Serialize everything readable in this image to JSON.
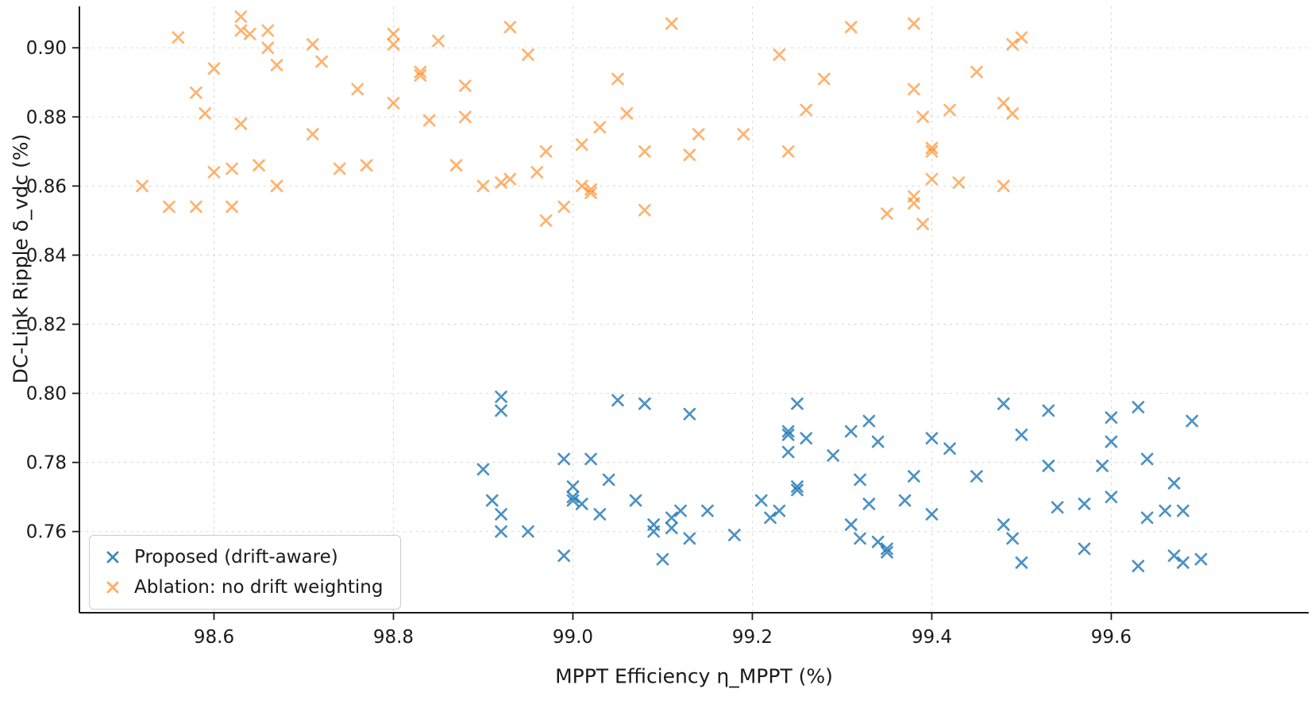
{
  "chart_data": {
    "type": "scatter",
    "title": "",
    "xlabel": "MPPT Efficiency η_MPPT (%)",
    "ylabel": "DC-Link Ripple δ_vdc (%)",
    "xlim": [
      98.45,
      99.82
    ],
    "ylim": [
      0.7365,
      0.912
    ],
    "xticks": [
      98.6,
      98.8,
      99.0,
      99.2,
      99.4,
      99.6
    ],
    "xtick_labels": [
      "98.6",
      "98.8",
      "99.0",
      "99.2",
      "99.4",
      "99.6"
    ],
    "yticks": [
      0.76,
      0.78,
      0.8,
      0.82,
      0.84,
      0.86,
      0.88,
      0.9
    ],
    "ytick_labels": [
      "0.76",
      "0.78",
      "0.80",
      "0.82",
      "0.84",
      "0.86",
      "0.88",
      "0.90"
    ],
    "grid": true,
    "grid_style": "dashed",
    "legend_position": "lower left",
    "marker": "x",
    "colors": {
      "blue": "#1f77b4",
      "orange": "#ff7f0e",
      "grid": "#d8d8d8",
      "spine": "#1a1a1a",
      "text": "#1a1a1a"
    },
    "series": [
      {
        "name": "Proposed (drift-aware)",
        "color": "#1f77b4",
        "opacity": 0.8,
        "points": [
          [
            98.92,
            0.799
          ],
          [
            98.92,
            0.795
          ],
          [
            98.9,
            0.778
          ],
          [
            98.91,
            0.769
          ],
          [
            98.92,
            0.765
          ],
          [
            98.92,
            0.76
          ],
          [
            98.95,
            0.76
          ],
          [
            98.99,
            0.781
          ],
          [
            98.99,
            0.753
          ],
          [
            99.0,
            0.773
          ],
          [
            99.0,
            0.77
          ],
          [
            99.0,
            0.769
          ],
          [
            99.01,
            0.768
          ],
          [
            99.02,
            0.781
          ],
          [
            99.03,
            0.765
          ],
          [
            99.05,
            0.798
          ],
          [
            99.04,
            0.775
          ],
          [
            99.08,
            0.797
          ],
          [
            99.07,
            0.769
          ],
          [
            99.09,
            0.762
          ],
          [
            99.09,
            0.76
          ],
          [
            99.1,
            0.752
          ],
          [
            99.11,
            0.764
          ],
          [
            99.11,
            0.761
          ],
          [
            99.12,
            0.766
          ],
          [
            99.13,
            0.794
          ],
          [
            99.13,
            0.758
          ],
          [
            99.15,
            0.766
          ],
          [
            99.18,
            0.759
          ],
          [
            99.21,
            0.769
          ],
          [
            99.22,
            0.764
          ],
          [
            99.23,
            0.766
          ],
          [
            99.24,
            0.789
          ],
          [
            99.24,
            0.788
          ],
          [
            99.24,
            0.783
          ],
          [
            99.25,
            0.797
          ],
          [
            99.25,
            0.773
          ],
          [
            99.25,
            0.772
          ],
          [
            99.26,
            0.787
          ],
          [
            99.29,
            0.782
          ],
          [
            99.31,
            0.789
          ],
          [
            99.31,
            0.762
          ],
          [
            99.32,
            0.775
          ],
          [
            99.32,
            0.758
          ],
          [
            99.33,
            0.792
          ],
          [
            99.33,
            0.768
          ],
          [
            99.34,
            0.757
          ],
          [
            99.34,
            0.786
          ],
          [
            99.35,
            0.755
          ],
          [
            99.35,
            0.754
          ],
          [
            99.37,
            0.769
          ],
          [
            99.38,
            0.776
          ],
          [
            99.4,
            0.765
          ],
          [
            99.4,
            0.787
          ],
          [
            99.42,
            0.784
          ],
          [
            99.45,
            0.776
          ],
          [
            99.48,
            0.797
          ],
          [
            99.48,
            0.762
          ],
          [
            99.49,
            0.758
          ],
          [
            99.5,
            0.788
          ],
          [
            99.5,
            0.751
          ],
          [
            99.53,
            0.795
          ],
          [
            99.53,
            0.779
          ],
          [
            99.54,
            0.767
          ],
          [
            99.57,
            0.768
          ],
          [
            99.57,
            0.755
          ],
          [
            99.59,
            0.779
          ],
          [
            99.6,
            0.793
          ],
          [
            99.6,
            0.786
          ],
          [
            99.6,
            0.77
          ],
          [
            99.63,
            0.796
          ],
          [
            99.63,
            0.75
          ],
          [
            99.64,
            0.781
          ],
          [
            99.64,
            0.764
          ],
          [
            99.66,
            0.766
          ],
          [
            99.67,
            0.774
          ],
          [
            99.67,
            0.753
          ],
          [
            99.68,
            0.766
          ],
          [
            99.68,
            0.751
          ],
          [
            99.69,
            0.792
          ],
          [
            99.7,
            0.752
          ]
        ]
      },
      {
        "name": "Ablation: no drift weighting",
        "color": "#ff7f0e",
        "opacity": 0.6,
        "points": [
          [
            98.52,
            0.86
          ],
          [
            98.55,
            0.854
          ],
          [
            98.56,
            0.903
          ],
          [
            98.58,
            0.887
          ],
          [
            98.58,
            0.854
          ],
          [
            98.59,
            0.881
          ],
          [
            98.6,
            0.894
          ],
          [
            98.6,
            0.864
          ],
          [
            98.62,
            0.865
          ],
          [
            98.62,
            0.854
          ],
          [
            98.63,
            0.909
          ],
          [
            98.63,
            0.905
          ],
          [
            98.64,
            0.904
          ],
          [
            98.63,
            0.878
          ],
          [
            98.65,
            0.866
          ],
          [
            98.66,
            0.905
          ],
          [
            98.66,
            0.9
          ],
          [
            98.67,
            0.895
          ],
          [
            98.67,
            0.86
          ],
          [
            98.71,
            0.901
          ],
          [
            98.71,
            0.875
          ],
          [
            98.72,
            0.896
          ],
          [
            98.74,
            0.865
          ],
          [
            98.76,
            0.888
          ],
          [
            98.77,
            0.866
          ],
          [
            98.8,
            0.904
          ],
          [
            98.8,
            0.901
          ],
          [
            98.8,
            0.884
          ],
          [
            98.83,
            0.893
          ],
          [
            98.83,
            0.892
          ],
          [
            98.84,
            0.879
          ],
          [
            98.85,
            0.902
          ],
          [
            98.87,
            0.866
          ],
          [
            98.88,
            0.889
          ],
          [
            98.88,
            0.88
          ],
          [
            98.9,
            0.86
          ],
          [
            98.92,
            0.861
          ],
          [
            98.93,
            0.906
          ],
          [
            98.93,
            0.862
          ],
          [
            98.95,
            0.898
          ],
          [
            98.96,
            0.864
          ],
          [
            98.97,
            0.87
          ],
          [
            98.97,
            0.85
          ],
          [
            98.99,
            0.854
          ],
          [
            99.01,
            0.872
          ],
          [
            99.01,
            0.86
          ],
          [
            99.02,
            0.859
          ],
          [
            99.02,
            0.858
          ],
          [
            99.03,
            0.877
          ],
          [
            99.05,
            0.891
          ],
          [
            99.06,
            0.881
          ],
          [
            99.08,
            0.87
          ],
          [
            99.08,
            0.853
          ],
          [
            99.11,
            0.907
          ],
          [
            99.13,
            0.869
          ],
          [
            99.14,
            0.875
          ],
          [
            99.19,
            0.875
          ],
          [
            99.23,
            0.898
          ],
          [
            99.24,
            0.87
          ],
          [
            99.26,
            0.882
          ],
          [
            99.28,
            0.891
          ],
          [
            99.31,
            0.906
          ],
          [
            99.35,
            0.852
          ],
          [
            99.38,
            0.907
          ],
          [
            99.38,
            0.888
          ],
          [
            99.38,
            0.857
          ],
          [
            99.38,
            0.855
          ],
          [
            99.39,
            0.849
          ],
          [
            99.39,
            0.88
          ],
          [
            99.4,
            0.871
          ],
          [
            99.4,
            0.87
          ],
          [
            99.4,
            0.862
          ],
          [
            99.42,
            0.882
          ],
          [
            99.43,
            0.861
          ],
          [
            99.45,
            0.893
          ],
          [
            99.48,
            0.884
          ],
          [
            99.48,
            0.86
          ],
          [
            99.49,
            0.901
          ],
          [
            99.49,
            0.881
          ],
          [
            99.5,
            0.903
          ]
        ]
      }
    ]
  }
}
